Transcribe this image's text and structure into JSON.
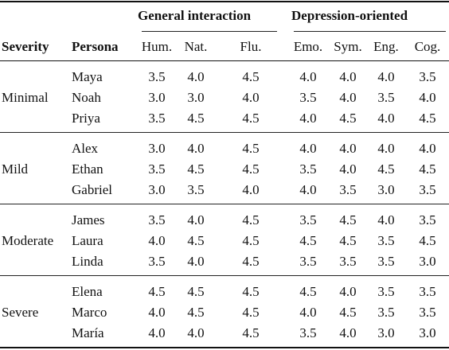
{
  "table": {
    "group_headers": {
      "general": "General interaction",
      "depression": "Depression-oriented"
    },
    "columns": {
      "severity": "Severity",
      "persona": "Persona",
      "metrics": [
        "Hum.",
        "Nat.",
        "Flu.",
        "Emo.",
        "Sym.",
        "Eng.",
        "Cog."
      ]
    },
    "groups": [
      {
        "severity": "Minimal",
        "rows": [
          {
            "persona": "Maya",
            "values": [
              "3.5",
              "4.0",
              "4.5",
              "4.0",
              "4.0",
              "4.0",
              "3.5"
            ]
          },
          {
            "persona": "Noah",
            "values": [
              "3.0",
              "3.0",
              "4.0",
              "3.5",
              "4.0",
              "3.5",
              "4.0"
            ]
          },
          {
            "persona": "Priya",
            "values": [
              "3.5",
              "4.5",
              "4.5",
              "4.0",
              "4.5",
              "4.0",
              "4.5"
            ]
          }
        ]
      },
      {
        "severity": "Mild",
        "rows": [
          {
            "persona": "Alex",
            "values": [
              "3.0",
              "4.0",
              "4.5",
              "4.0",
              "4.0",
              "4.0",
              "4.0"
            ]
          },
          {
            "persona": "Ethan",
            "values": [
              "3.5",
              "4.5",
              "4.5",
              "3.5",
              "4.0",
              "4.5",
              "4.5"
            ]
          },
          {
            "persona": "Gabriel",
            "values": [
              "3.0",
              "3.5",
              "4.0",
              "4.0",
              "3.5",
              "3.0",
              "3.5"
            ]
          }
        ]
      },
      {
        "severity": "Moderate",
        "rows": [
          {
            "persona": "James",
            "values": [
              "3.5",
              "4.0",
              "4.5",
              "3.5",
              "4.5",
              "4.0",
              "3.5"
            ]
          },
          {
            "persona": "Laura",
            "values": [
              "4.0",
              "4.5",
              "4.5",
              "4.5",
              "4.5",
              "3.5",
              "4.5"
            ]
          },
          {
            "persona": "Linda",
            "values": [
              "3.5",
              "4.0",
              "4.5",
              "3.5",
              "3.5",
              "3.5",
              "3.0"
            ]
          }
        ]
      },
      {
        "severity": "Severe",
        "rows": [
          {
            "persona": "Elena",
            "values": [
              "4.5",
              "4.5",
              "4.5",
              "4.5",
              "4.0",
              "3.5",
              "3.5"
            ]
          },
          {
            "persona": "Marco",
            "values": [
              "4.0",
              "4.5",
              "4.5",
              "4.0",
              "4.5",
              "3.5",
              "3.5"
            ]
          },
          {
            "persona": "María",
            "values": [
              "4.0",
              "4.0",
              "4.5",
              "3.5",
              "4.0",
              "3.0",
              "3.0"
            ]
          }
        ]
      }
    ]
  }
}
